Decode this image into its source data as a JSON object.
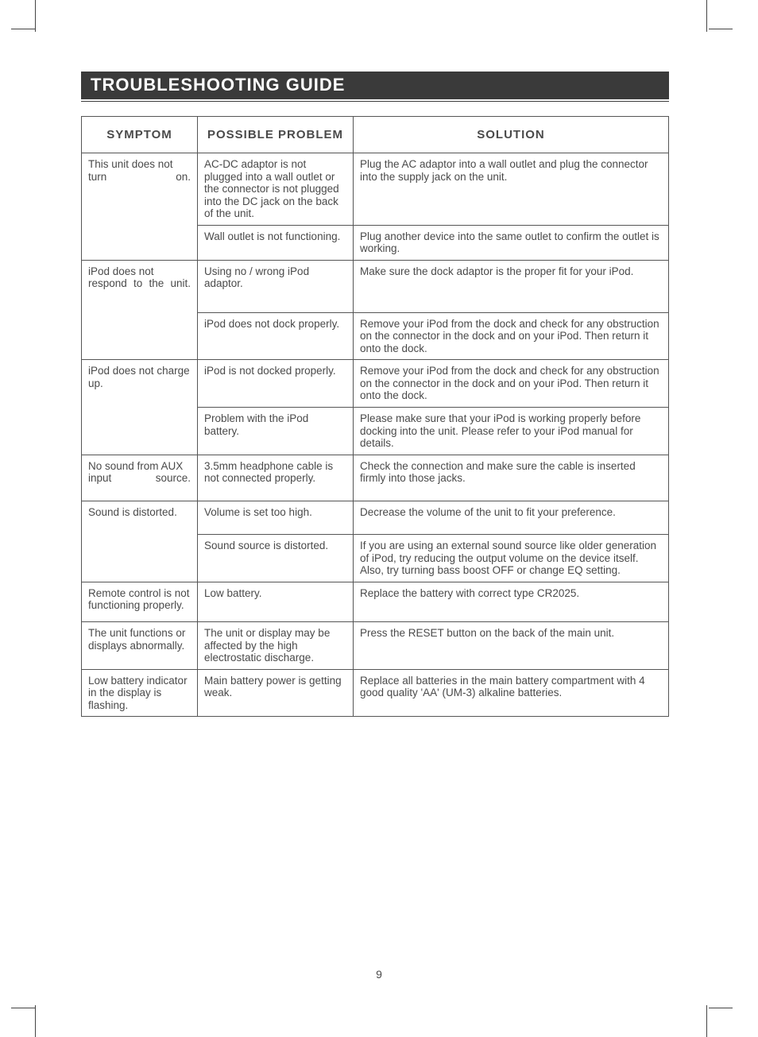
{
  "title": "TROUBLESHOOTING GUIDE",
  "page_number": "9",
  "headers": {
    "c1": "SYMPTOM",
    "c2": "POSSIBLE PROBLEM",
    "c3": "SOLUTION"
  },
  "rows": [
    {
      "sym": "This unit does not turn on.",
      "sym_span": 2,
      "sym_class": "jw",
      "prob": "AC-DC adaptor is not plugged into a wall outlet or the connector is not plugged into the DC jack on the back of the unit.",
      "prob_class": "j",
      "sol": "Plug the AC adaptor into a wall outlet and plug the connector into the supply jack on the unit."
    },
    {
      "prob": "Wall outlet is not functioning.",
      "sol": "Plug another device into the same outlet to confirm the outlet is working."
    },
    {
      "sym": "iPod does not respond to the unit.",
      "sym_span": 2,
      "sym_class": "jw",
      "prob": "Using no / wrong iPod adaptor.",
      "prob_class": "j",
      "pad": "pad-b",
      "sol": "Make sure the dock adaptor is the proper fit for your iPod."
    },
    {
      "prob": "iPod does not dock properly.",
      "sol": "Remove your iPod from the dock and check for any obstruction on the connector in the dock and on your iPod. Then return it onto the dock.",
      "sol_class": "j"
    },
    {
      "sym": "iPod does not charge up.",
      "sym_span": 2,
      "sym_class": "jw",
      "prob": "iPod is not docked properly.",
      "sol": "Remove your iPod from the dock and check for any obstruction on the connector in the dock and on your iPod. Then return it onto the dock.",
      "sol_class": "j"
    },
    {
      "prob": "Problem with the iPod battery.",
      "prob_class": "j",
      "sol": "Please make sure that your iPod is working properly before docking into the unit. Please refer to your iPod manual for details.",
      "sol_class": "j"
    },
    {
      "sym": "No sound from AUX input source.",
      "sym_span": 1,
      "sym_class": "jw",
      "prob": "3.5mm headphone cable is not connected properly.",
      "pad": "pad-b2",
      "sol": "Check the connection and make sure the cable is inserted firmly into those jacks."
    },
    {
      "sym": "Sound is distorted.",
      "sym_span": 2,
      "prob": "Volume is set too high.",
      "pad": "pad-b2",
      "sol": "Decrease the volume of the unit to fit your preference."
    },
    {
      "prob": "Sound source is distorted.",
      "sol": "If you are using an external sound source like older generation of iPod, try reducing the output volume on the device itself. Also, try turning bass boost OFF or change EQ setting.",
      "sol_class": "j"
    },
    {
      "sym": "Remote control is not functioning properly.",
      "sym_span": 1,
      "sym_class": "j",
      "prob": "Low battery.",
      "pad": "pad-b",
      "sol": "Replace the battery with correct type CR2025."
    },
    {
      "sym": "The unit functions or displays abnormally.",
      "sym_span": 1,
      "prob": "The unit or display may be affected by the high electrostatic discharge.",
      "prob_class": "j",
      "sol": "Press the RESET button on the back of the main unit."
    },
    {
      "sym": "Low battery indicator in the display is flashing.",
      "sym_span": 1,
      "sym_class": "j",
      "prob": "Main battery power is getting weak.",
      "pad": "pad-b2",
      "sol": "Replace all batteries in the main battery compartment with 4 good quality 'AA' (UM-3) alkaline batteries."
    }
  ]
}
